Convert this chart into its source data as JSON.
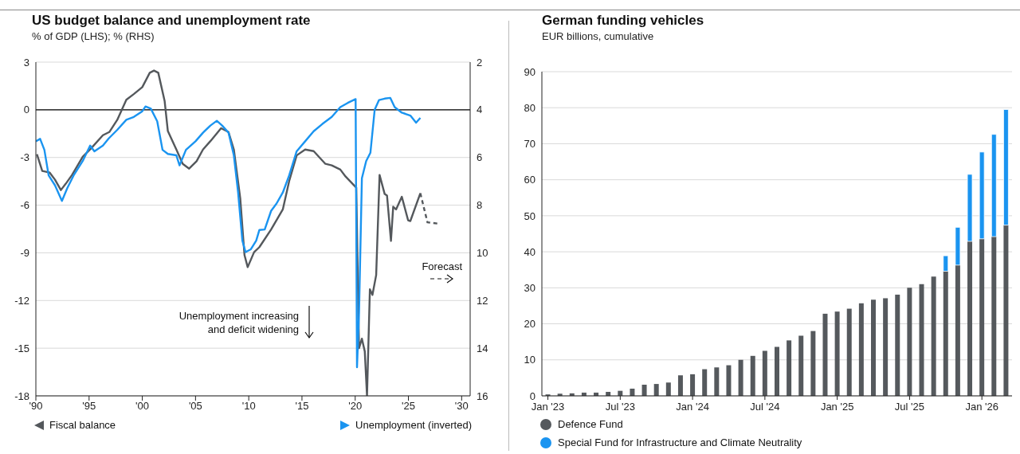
{
  "chart_data": [
    {
      "type": "line",
      "title": "US budget balance and unemployment rate",
      "subtitle": "% of GDP (LHS); % (RHS)",
      "xlim": [
        1990,
        2030.8
      ],
      "xticks": [
        {
          "value": 1990,
          "label": "'90"
        },
        {
          "value": 1995,
          "label": "'95"
        },
        {
          "value": 2000,
          "label": "'00"
        },
        {
          "value": 2005,
          "label": "'05"
        },
        {
          "value": 2010,
          "label": "'10"
        },
        {
          "value": 2015,
          "label": "'15"
        },
        {
          "value": 2020,
          "label": "'20"
        },
        {
          "value": 2025,
          "label": "'25"
        },
        {
          "value": 2030,
          "label": "'30"
        }
      ],
      "ylim": [
        -18,
        3
      ],
      "yticks": [
        -18,
        -15,
        -12,
        -9,
        -6,
        -3,
        0,
        3
      ],
      "y2lim": [
        16,
        2
      ],
      "y2ticks": [
        2,
        4,
        6,
        8,
        10,
        12,
        14,
        16
      ],
      "grid": "y",
      "legend": "bottom",
      "ref_lines": [
        {
          "axis": "y",
          "value": 0,
          "color": "#000000"
        }
      ],
      "annotations": [
        "Forecast",
        "Unemployment increasing\nand deficit widening"
      ],
      "series": [
        {
          "name": "Fiscal balance",
          "color": "#54585c",
          "x": [
            1990.1,
            1990.6,
            1991.3,
            1991.8,
            1992.35,
            1992.8,
            1993.4,
            1994.4,
            1995.2,
            1996.3,
            1996.9,
            1997.65,
            1998.5,
            1999.2,
            2000.0,
            2000.7,
            2001.1,
            2001.5,
            2002.1,
            2002.4,
            2003.2,
            2003.8,
            2004.4,
            2005.1,
            2005.7,
            2006.4,
            2007.4,
            2008.1,
            2008.6,
            2009.2,
            2009.6,
            2009.9,
            2010.5,
            2011.0,
            2012.1,
            2013.2,
            2013.8,
            2014.5,
            2015.3,
            2016.1,
            2017.2,
            2017.8,
            2018.6,
            2019.1,
            2020.1,
            2020.36,
            2020.63,
            2020.9,
            2021.11,
            2021.38,
            2021.62,
            2021.97,
            2022.29,
            2022.77,
            2022.99,
            2023.36,
            2023.57,
            2023.84,
            2024.38,
            2024.97,
            2025.18,
            2026.12
          ],
          "values": [
            -2.8,
            -3.85,
            -3.95,
            -4.4,
            -5.05,
            -4.66,
            -4.1,
            -2.96,
            -2.42,
            -1.6,
            -1.4,
            -0.63,
            0.63,
            0.99,
            1.43,
            2.33,
            2.47,
            2.33,
            0.54,
            -1.34,
            -2.5,
            -3.4,
            -3.7,
            -3.23,
            -2.5,
            -1.97,
            -1.16,
            -1.4,
            -2.5,
            -5.56,
            -9.14,
            -9.9,
            -8.96,
            -8.64,
            -7.53,
            -6.27,
            -4.48,
            -2.87,
            -2.5,
            -2.6,
            -3.4,
            -3.5,
            -3.76,
            -4.2,
            -4.9,
            -15,
            -14.4,
            -15.2,
            -18,
            -11.3,
            -11.65,
            -10.4,
            -4.1,
            -5.3,
            -5.4,
            -8.25,
            -6.1,
            -6.27,
            -5.47,
            -6.95,
            -7.0,
            -5.25
          ]
        },
        {
          "color": "#54585c",
          "line_style": "dashed",
          "x": [
            2026.12,
            2026.79,
            2027.91
          ],
          "values": [
            -5.25,
            -7.08,
            -7.17
          ]
        },
        {
          "name": "Unemployment (inverted)",
          "color": "#1a94f0",
          "axis": "y2",
          "x": [
            1990.0,
            1990.4,
            1990.8,
            1991.2,
            1991.8,
            1992.45,
            1992.95,
            1993.55,
            1994.4,
            1995.1,
            1995.5,
            1996.3,
            1996.85,
            1997.65,
            1998.5,
            1999.2,
            2000.0,
            2000.3,
            2000.8,
            2001.4,
            2001.9,
            2002.4,
            2003.2,
            2003.5,
            2004.1,
            2005.0,
            2005.7,
            2006.4,
            2007.0,
            2007.5,
            2008.1,
            2008.6,
            2009.0,
            2009.4,
            2009.7,
            2010.2,
            2010.7,
            2011.0,
            2011.5,
            2012.1,
            2012.6,
            2013.2,
            2013.8,
            2014.5,
            2015.3,
            2016.1,
            2016.9,
            2017.8,
            2018.6,
            2019.3,
            2020.04,
            2020.17,
            2020.36,
            2020.63,
            2021.03,
            2021.43,
            2021.83,
            2022.24,
            2022.77,
            2023.3,
            2023.71,
            2024.38,
            2025.18,
            2025.72,
            2026.12
          ],
          "values": [
            5.32,
            5.22,
            5.68,
            6.75,
            7.17,
            7.82,
            7.29,
            6.75,
            6.15,
            5.5,
            5.74,
            5.5,
            5.2,
            4.84,
            4.42,
            4.3,
            4.06,
            3.86,
            3.95,
            4.48,
            5.68,
            5.85,
            5.91,
            6.33,
            5.68,
            5.32,
            4.96,
            4.66,
            4.46,
            4.66,
            4.96,
            5.91,
            7.47,
            9.49,
            9.97,
            9.85,
            9.49,
            9.04,
            9.02,
            8.24,
            7.94,
            7.47,
            6.75,
            5.74,
            5.32,
            4.9,
            4.6,
            4.3,
            3.89,
            3.71,
            3.55,
            14.8,
            12.5,
            6.87,
            6.15,
            5.8,
            4.0,
            3.59,
            3.53,
            3.5,
            3.89,
            4.12,
            4.24,
            4.54,
            4.34
          ]
        }
      ]
    },
    {
      "type": "bar",
      "title": "German funding vehicles",
      "subtitle": "EUR billions, cumulative",
      "stacked": true,
      "categories": [
        "Jan '23",
        null,
        null,
        null,
        null,
        null,
        "Jul '23",
        null,
        null,
        null,
        null,
        null,
        "Jan '24",
        null,
        null,
        null,
        null,
        null,
        "Jul '24",
        null,
        null,
        null,
        null,
        null,
        "Jan '25",
        null,
        null,
        null,
        null,
        null,
        "Jul '25",
        null,
        null,
        null,
        null,
        null,
        "Jan '26",
        null,
        null
      ],
      "ylim": [
        0,
        90
      ],
      "yticks": [
        0,
        10,
        20,
        30,
        40,
        50,
        60,
        70,
        80,
        90
      ],
      "grid": "y",
      "legend": "bottom left",
      "series": [
        {
          "name": "Defence Fund",
          "color": "#55595d",
          "values": [
            0.4,
            0.6,
            0.7,
            0.9,
            0.9,
            1.1,
            1.4,
            2.0,
            3.1,
            3.3,
            3.7,
            5.7,
            6.0,
            7.4,
            7.9,
            8.5,
            10.0,
            11.1,
            12.5,
            13.6,
            15.4,
            16.7,
            18.0,
            22.8,
            23.4,
            24.2,
            25.7,
            26.7,
            27.1,
            28.1,
            30.0,
            31.0,
            33.1,
            34.6,
            36.3,
            42.9,
            43.6,
            44.2,
            47.4
          ]
        },
        {
          "name": "Special Fund for Infrastructure and Climate Neutrality",
          "color": "#1a94f0",
          "values": [
            null,
            null,
            null,
            null,
            null,
            null,
            null,
            null,
            null,
            null,
            null,
            null,
            null,
            null,
            null,
            null,
            null,
            null,
            null,
            null,
            null,
            null,
            null,
            null,
            null,
            null,
            null,
            null,
            null,
            null,
            null,
            null,
            null,
            4.3,
            10.5,
            18.6,
            24.1,
            28.4,
            32.1
          ]
        }
      ]
    }
  ]
}
